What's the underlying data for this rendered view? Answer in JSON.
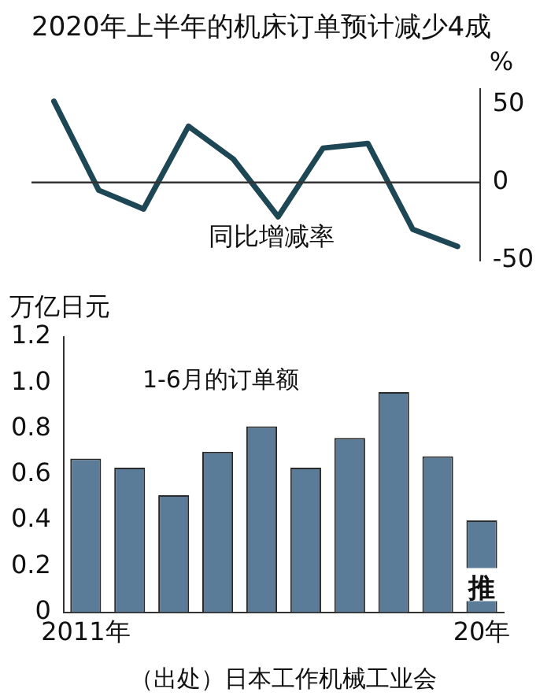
{
  "chart_data": [
    {
      "type": "line",
      "title": "2020年上半年的机床订单预计减少4成",
      "ylabel": "%",
      "categories": [
        null,
        null,
        null,
        null,
        null,
        null,
        null,
        null,
        null,
        null
      ],
      "series": [
        {
          "color": "#1e4756",
          "values": [
            52,
            -5,
            -17,
            36,
            15,
            -22,
            22,
            25,
            -30,
            -41
          ]
        }
      ],
      "ylim": [
        -50,
        60
      ],
      "yticks": [
        -50,
        0,
        50
      ],
      "tick_labels": "y",
      "grid": false,
      "legend": false,
      "marker": "none",
      "line_style": "solid",
      "ref_lines": [
        {
          "axis": "y",
          "value": 0,
          "color": "#333333"
        }
      ],
      "annotations": [
        "同比增减率"
      ]
    },
    {
      "type": "bar",
      "ylabel": "万亿日元",
      "categories": [
        "2011年",
        null,
        null,
        null,
        null,
        null,
        null,
        null,
        null,
        "20年"
      ],
      "series": [
        {
          "color": "#5b7c99",
          "values": [
            0.67,
            0.63,
            0.51,
            0.7,
            0.81,
            0.63,
            0.76,
            0.96,
            0.68,
            0.4
          ]
        }
      ],
      "ylim": [
        0,
        1.2
      ],
      "yticks": [
        0,
        0.2,
        0.4,
        0.6,
        0.8,
        {
          "value": 1,
          "label": "1.0"
        },
        1.2
      ],
      "grid": false,
      "legend": false,
      "annotations": [
        "1-6月的订单额",
        "（出处）日本工作机械工业会",
        "推"
      ]
    }
  ]
}
